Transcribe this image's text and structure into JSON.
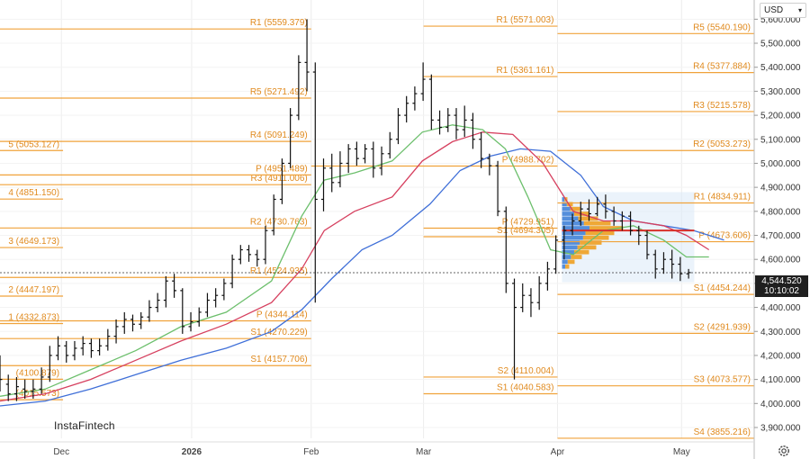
{
  "header": {
    "currency": "USD",
    "watermark": "InstaFintech"
  },
  "icons": {
    "dropdown": "chevron-down-icon",
    "settings": "gear-icon"
  },
  "colors": {
    "pivot": "#f0a23a",
    "pivot_text": "#e08a1e",
    "ma_fast": "#6cbf6c",
    "ma_mid": "#d6405f",
    "ma_slow": "#3f6fd8",
    "volume_profile": "#f0a020",
    "volume_profile_alt": "#3a7bd5",
    "poc": "#d8302a"
  },
  "price_tag": {
    "price": "4,544.520",
    "time": "10:10:02"
  },
  "chart_data": {
    "type": "line",
    "ylim": [
      3855,
      5680
    ],
    "y_ticks": [
      "3,900.000",
      "4,000.000",
      "4,100.000",
      "4,200.000",
      "4,300.000",
      "4,400.000",
      "4,500.000",
      "4,600.000",
      "4,700.000",
      "4,800.000",
      "4,900.000",
      "5,000.000",
      "5,100.000",
      "5,200.000",
      "5,300.000",
      "5,400.000",
      "5,500.000",
      "5,600.000"
    ],
    "x_ticks": [
      {
        "label": "Dec",
        "bold": false,
        "pos": 0.0814
      },
      {
        "label": "2026",
        "bold": true,
        "pos": 0.2541
      },
      {
        "label": "Feb",
        "bold": false,
        "pos": 0.4126
      },
      {
        "label": "Mar",
        "bold": false,
        "pos": 0.5616
      },
      {
        "label": "Apr",
        "bold": false,
        "pos": 0.7392
      },
      {
        "label": "May",
        "bold": false,
        "pos": 0.9037
      }
    ],
    "current_price": 4544.52,
    "pivot_levels": [
      {
        "label": "R1 (5559.379)",
        "value": 5559.379,
        "x0": 0.0,
        "x1": 0.4126
      },
      {
        "label": "R5 (5271.492)",
        "value": 5271.492,
        "x0": 0.0,
        "x1": 0.4126
      },
      {
        "label": "R4 (5091.249)",
        "value": 5091.249,
        "x0": 0.0,
        "x1": 0.4126
      },
      {
        "label": "R3 (4911.006)",
        "value": 4911.006,
        "x0": 0.0,
        "x1": 0.4126
      },
      {
        "label": "R2 (4730.763)",
        "value": 4730.763,
        "x0": 0.0,
        "x1": 0.4126
      },
      {
        "label": "R1 (4524.935)",
        "value": 4524.935,
        "x0": 0.0,
        "x1": 0.4126
      },
      {
        "label": "P (4344.114)",
        "value": 4344.114,
        "x0": 0.0,
        "x1": 0.4126
      },
      {
        "label": "S1 (4157.706)",
        "value": 4157.706,
        "x0": 0.0,
        "x1": 0.4126
      },
      {
        "label": "P (4951.489)",
        "value": 4951.489,
        "x0": 0.0,
        "x1": 0.4126
      },
      {
        "label": "S1 (4270.229)",
        "value": 4270.229,
        "x0": 0.0,
        "x1": 0.4126
      },
      {
        "label": "5 (5053.127)",
        "value": 5053.127,
        "x0": 0.0,
        "x1": 0.0836
      },
      {
        "label": "4 (4851.150)",
        "value": 4851.15,
        "x0": 0.0,
        "x1": 0.0836
      },
      {
        "label": "3 (4649.173)",
        "value": 4649.173,
        "x0": 0.0,
        "x1": 0.0836
      },
      {
        "label": "2 (4447.197)",
        "value": 4447.197,
        "x0": 0.0,
        "x1": 0.0836
      },
      {
        "label": "1 (4332.873)",
        "value": 4332.873,
        "x0": 0.0,
        "x1": 0.0836
      },
      {
        "label": "(4100.879)",
        "value": 4100.879,
        "x0": 0.0,
        "x1": 0.0836
      },
      {
        "label": "(4015.573)",
        "value": 4015.573,
        "x0": 0.0,
        "x1": 0.0836
      },
      {
        "label": "R1 (5571.003)",
        "value": 5571.003,
        "x0": 0.5616,
        "x1": 0.7392
      },
      {
        "label": "R1 (5361.161)",
        "value": 5361.161,
        "x0": 0.5616,
        "x1": 0.7392
      },
      {
        "label": "P (4988.702)",
        "value": 4988.702,
        "x0": 0.4126,
        "x1": 0.7392
      },
      {
        "label": "S1 (4694.305)",
        "value": 4694.305,
        "x0": 0.5616,
        "x1": 0.7392
      },
      {
        "label": "P (4729.951)",
        "value": 4729.951,
        "x0": 0.5616,
        "x1": 0.7392
      },
      {
        "label": "S2 (4110.004)",
        "value": 4110.004,
        "x0": 0.5616,
        "x1": 0.7392
      },
      {
        "label": "S1 (4040.583)",
        "value": 4040.583,
        "x0": 0.5616,
        "x1": 0.7392
      },
      {
        "label": "R5 (5540.190)",
        "value": 5540.19,
        "x0": 0.7392,
        "x1": 1.0
      },
      {
        "label": "R4 (5377.884)",
        "value": 5377.884,
        "x0": 0.7392,
        "x1": 1.0
      },
      {
        "label": "R3 (5215.578)",
        "value": 5215.578,
        "x0": 0.7392,
        "x1": 1.0
      },
      {
        "label": "R2 (5053.273)",
        "value": 5053.273,
        "x0": 0.7392,
        "x1": 1.0
      },
      {
        "label": "R1 (4834.911)",
        "value": 4834.911,
        "x0": 0.7392,
        "x1": 1.0
      },
      {
        "label": "P (4673.606)",
        "value": 4673.606,
        "x0": 0.7392,
        "x1": 1.0
      },
      {
        "label": "S1 (4454.244)",
        "value": 4454.244,
        "x0": 0.7392,
        "x1": 1.0
      },
      {
        "label": "S2 (4291.939)",
        "value": 4291.939,
        "x0": 0.7392,
        "x1": 1.0
      },
      {
        "label": "S3 (4073.577)",
        "value": 4073.577,
        "x0": 0.7392,
        "x1": 1.0
      },
      {
        "label": "S4 (3855.216)",
        "value": 3855.216,
        "x0": 0.7392,
        "x1": 1.0
      }
    ],
    "bars": [
      [
        0.0,
        4150,
        4100,
        4200,
        4050
      ],
      [
        0.011,
        4080,
        4040,
        4120,
        4010
      ],
      [
        0.022,
        4040,
        4070,
        4110,
        4010
      ],
      [
        0.033,
        4060,
        4050,
        4100,
        4020
      ],
      [
        0.044,
        4050,
        4060,
        4100,
        4020
      ],
      [
        0.055,
        4060,
        4110,
        4150,
        4040
      ],
      [
        0.066,
        4110,
        4200,
        4240,
        4090
      ],
      [
        0.077,
        4200,
        4240,
        4280,
        4180
      ],
      [
        0.088,
        4240,
        4200,
        4260,
        4170
      ],
      [
        0.099,
        4200,
        4230,
        4260,
        4180
      ],
      [
        0.11,
        4230,
        4250,
        4280,
        4200
      ],
      [
        0.121,
        4250,
        4220,
        4270,
        4190
      ],
      [
        0.132,
        4220,
        4240,
        4270,
        4200
      ],
      [
        0.143,
        4240,
        4280,
        4310,
        4220
      ],
      [
        0.154,
        4280,
        4320,
        4350,
        4250
      ],
      [
        0.165,
        4320,
        4350,
        4380,
        4290
      ],
      [
        0.176,
        4350,
        4330,
        4370,
        4300
      ],
      [
        0.187,
        4330,
        4360,
        4380,
        4310
      ],
      [
        0.198,
        4360,
        4400,
        4430,
        4340
      ],
      [
        0.209,
        4400,
        4430,
        4460,
        4380
      ],
      [
        0.22,
        4430,
        4510,
        4530,
        4400
      ],
      [
        0.231,
        4510,
        4470,
        4540,
        4440
      ],
      [
        0.242,
        4470,
        4320,
        4480,
        4290
      ],
      [
        0.253,
        4320,
        4340,
        4380,
        4300
      ],
      [
        0.264,
        4340,
        4380,
        4400,
        4320
      ],
      [
        0.275,
        4380,
        4430,
        4460,
        4360
      ],
      [
        0.286,
        4430,
        4450,
        4480,
        4400
      ],
      [
        0.297,
        4450,
        4500,
        4520,
        4430
      ],
      [
        0.308,
        4500,
        4600,
        4620,
        4480
      ],
      [
        0.319,
        4600,
        4640,
        4660,
        4580
      ],
      [
        0.33,
        4640,
        4620,
        4660,
        4590
      ],
      [
        0.341,
        4620,
        4600,
        4640,
        4570
      ],
      [
        0.352,
        4600,
        4720,
        4740,
        4580
      ],
      [
        0.363,
        4720,
        4850,
        4870,
        4700
      ],
      [
        0.374,
        4850,
        5000,
        5020,
        4830
      ],
      [
        0.385,
        5000,
        5200,
        5230,
        4980
      ],
      [
        0.396,
        5200,
        5420,
        5450,
        5180
      ],
      [
        0.407,
        5420,
        5380,
        5600,
        5300
      ],
      [
        0.418,
        5380,
        4850,
        5420,
        4420
      ],
      [
        0.429,
        4850,
        4980,
        5020,
        4800
      ],
      [
        0.44,
        4980,
        4920,
        5040,
        4880
      ],
      [
        0.451,
        4920,
        5000,
        5050,
        4900
      ],
      [
        0.462,
        5000,
        5060,
        5080,
        4960
      ],
      [
        0.473,
        5060,
        5020,
        5090,
        4990
      ],
      [
        0.484,
        5020,
        5060,
        5080,
        5000
      ],
      [
        0.495,
        5060,
        4980,
        5090,
        4940
      ],
      [
        0.506,
        4980,
        5040,
        5070,
        4950
      ],
      [
        0.517,
        5040,
        5100,
        5130,
        5020
      ],
      [
        0.528,
        5100,
        5200,
        5230,
        5080
      ],
      [
        0.539,
        5200,
        5250,
        5280,
        5170
      ],
      [
        0.55,
        5250,
        5290,
        5320,
        5220
      ],
      [
        0.561,
        5290,
        5350,
        5420,
        5260
      ],
      [
        0.572,
        5350,
        5180,
        5370,
        5140
      ],
      [
        0.583,
        5180,
        5150,
        5220,
        5120
      ],
      [
        0.594,
        5150,
        5200,
        5230,
        5130
      ],
      [
        0.605,
        5200,
        5140,
        5230,
        5100
      ],
      [
        0.616,
        5140,
        5180,
        5240,
        5110
      ],
      [
        0.627,
        5180,
        5100,
        5210,
        5060
      ],
      [
        0.638,
        5100,
        5020,
        5130,
        4980
      ],
      [
        0.649,
        5020,
        4990,
        5040,
        4950
      ],
      [
        0.66,
        4990,
        4800,
        5010,
        4780
      ],
      [
        0.671,
        4800,
        4500,
        4820,
        4460
      ],
      [
        0.682,
        4500,
        4400,
        4520,
        4100
      ],
      [
        0.693,
        4400,
        4450,
        4500,
        4380
      ],
      [
        0.704,
        4450,
        4420,
        4480,
        4360
      ],
      [
        0.715,
        4420,
        4500,
        4530,
        4390
      ],
      [
        0.726,
        4500,
        4560,
        4590,
        4470
      ],
      [
        0.737,
        4560,
        4680,
        4700,
        4540
      ],
      [
        0.748,
        4680,
        4720,
        4740,
        4600
      ],
      [
        0.759,
        4720,
        4760,
        4790,
        4700
      ],
      [
        0.77,
        4760,
        4810,
        4840,
        4740
      ],
      [
        0.781,
        4810,
        4790,
        4850,
        4760
      ],
      [
        0.792,
        4790,
        4830,
        4860,
        4780
      ],
      [
        0.803,
        4830,
        4800,
        4870,
        4770
      ],
      [
        0.814,
        4800,
        4760,
        4820,
        4740
      ],
      [
        0.825,
        4760,
        4780,
        4800,
        4720
      ],
      [
        0.836,
        4780,
        4720,
        4800,
        4700
      ],
      [
        0.847,
        4720,
        4700,
        4740,
        4660
      ],
      [
        0.858,
        4700,
        4620,
        4720,
        4600
      ],
      [
        0.869,
        4620,
        4560,
        4640,
        4520
      ],
      [
        0.88,
        4560,
        4600,
        4630,
        4540
      ],
      [
        0.891,
        4600,
        4580,
        4640,
        4520
      ],
      [
        0.902,
        4580,
        4540,
        4610,
        4510
      ],
      [
        0.913,
        4540,
        4545,
        4560,
        4520
      ]
    ],
    "ma_fast": [
      [
        0.0,
        4030
      ],
      [
        0.06,
        4060
      ],
      [
        0.12,
        4140
      ],
      [
        0.18,
        4220
      ],
      [
        0.24,
        4320
      ],
      [
        0.3,
        4380
      ],
      [
        0.36,
        4510
      ],
      [
        0.4,
        4780
      ],
      [
        0.43,
        4930
      ],
      [
        0.47,
        4960
      ],
      [
        0.52,
        5010
      ],
      [
        0.56,
        5130
      ],
      [
        0.6,
        5160
      ],
      [
        0.64,
        5140
      ],
      [
        0.67,
        5060
      ],
      [
        0.7,
        4860
      ],
      [
        0.73,
        4640
      ],
      [
        0.76,
        4620
      ],
      [
        0.8,
        4720
      ],
      [
        0.84,
        4740
      ],
      [
        0.88,
        4680
      ],
      [
        0.91,
        4610
      ],
      [
        0.94,
        4610
      ]
    ],
    "ma_mid": [
      [
        0.0,
        4010
      ],
      [
        0.06,
        4040
      ],
      [
        0.12,
        4100
      ],
      [
        0.18,
        4180
      ],
      [
        0.24,
        4260
      ],
      [
        0.3,
        4330
      ],
      [
        0.36,
        4420
      ],
      [
        0.4,
        4560
      ],
      [
        0.43,
        4720
      ],
      [
        0.47,
        4800
      ],
      [
        0.52,
        4860
      ],
      [
        0.56,
        5010
      ],
      [
        0.6,
        5090
      ],
      [
        0.64,
        5130
      ],
      [
        0.68,
        5120
      ],
      [
        0.72,
        5000
      ],
      [
        0.76,
        4800
      ],
      [
        0.8,
        4760
      ],
      [
        0.84,
        4760
      ],
      [
        0.88,
        4740
      ],
      [
        0.91,
        4700
      ],
      [
        0.94,
        4640
      ]
    ],
    "ma_slow": [
      [
        0.0,
        3990
      ],
      [
        0.06,
        4010
      ],
      [
        0.12,
        4060
      ],
      [
        0.18,
        4120
      ],
      [
        0.24,
        4180
      ],
      [
        0.3,
        4230
      ],
      [
        0.36,
        4300
      ],
      [
        0.4,
        4390
      ],
      [
        0.44,
        4520
      ],
      [
        0.48,
        4640
      ],
      [
        0.52,
        4700
      ],
      [
        0.57,
        4830
      ],
      [
        0.61,
        4970
      ],
      [
        0.65,
        5030
      ],
      [
        0.69,
        5060
      ],
      [
        0.73,
        5050
      ],
      [
        0.77,
        4950
      ],
      [
        0.8,
        4820
      ],
      [
        0.84,
        4760
      ],
      [
        0.88,
        4740
      ],
      [
        0.92,
        4720
      ],
      [
        0.96,
        4680
      ]
    ],
    "poc_level": 4720,
    "volume_profile": [
      [
        4560,
        8
      ],
      [
        4580,
        14
      ],
      [
        4600,
        22
      ],
      [
        4620,
        30
      ],
      [
        4640,
        38
      ],
      [
        4660,
        44
      ],
      [
        4680,
        52
      ],
      [
        4700,
        58
      ],
      [
        4720,
        68
      ],
      [
        4740,
        54
      ],
      [
        4760,
        40
      ],
      [
        4780,
        30
      ],
      [
        4800,
        20
      ],
      [
        4820,
        12
      ],
      [
        4840,
        6
      ]
    ]
  }
}
